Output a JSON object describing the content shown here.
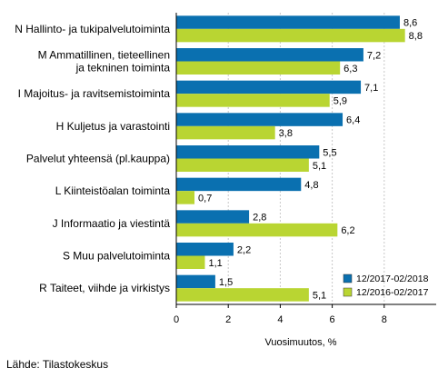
{
  "chart_data": {
    "type": "bar",
    "orientation": "horizontal",
    "categories": [
      [
        "N Hallinto- ja tukipalvelutoiminta"
      ],
      [
        "M Ammatillinen, tieteellinen",
        "ja tekninen toiminta"
      ],
      [
        "I Majoitus- ja ravitsemistoiminta"
      ],
      [
        "H Kuljetus ja varastointi"
      ],
      [
        "Palvelut yhteensä (pl.kauppa)"
      ],
      [
        "L Kiinteistöalan toiminta"
      ],
      [
        "J Informaatio ja viestintä"
      ],
      [
        "S Muu palvelutoiminta"
      ],
      [
        "R Taiteet, viihde ja virkistys"
      ]
    ],
    "series": [
      {
        "name": "12/2017-02/2018",
        "color": "#0a70b0",
        "values": [
          8.6,
          7.2,
          7.1,
          6.4,
          5.5,
          4.8,
          2.8,
          2.2,
          1.5
        ],
        "labels": [
          "8,6",
          "7,2",
          "7,1",
          "6,4",
          "5,5",
          "4,8",
          "2,8",
          "2,2",
          "1,5"
        ]
      },
      {
        "name": "12/2016-02/2017",
        "color": "#b9d532",
        "values": [
          8.8,
          6.3,
          5.9,
          3.8,
          5.1,
          0.7,
          6.2,
          1.1,
          5.1
        ],
        "labels": [
          "8,8",
          "6,3",
          "5,9",
          "3,8",
          "5,1",
          "0,7",
          "6,2",
          "1,1",
          "5,1"
        ]
      }
    ],
    "xlim": [
      0,
      10
    ],
    "xticks": [
      0,
      2,
      4,
      6,
      8
    ],
    "xtick_labels": [
      "0",
      "2",
      "4",
      "6",
      "8"
    ],
    "xlabel": "Vuosimuutos, %",
    "grid": true,
    "legend_position": "bottom-right"
  },
  "source": "Lähde: Tilastokeskus"
}
